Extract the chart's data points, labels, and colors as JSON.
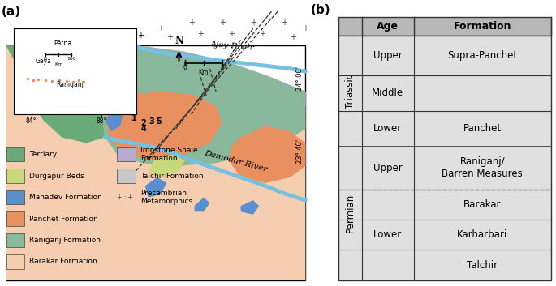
{
  "panel_b": {
    "header_age": "Age",
    "header_formation": "Formation",
    "bg_color": "#e0e0e0",
    "header_bg": "#b8b8b8",
    "line_color": "#333333",
    "font_size": 8.5
  },
  "panel_a": {
    "colors": {
      "Tertiary": "#6aaa78",
      "Durgapur Beds": "#c8d87a",
      "Mahadev Formation": "#5a8ecc",
      "Panchet Formation": "#e89060",
      "Raniganj Formation": "#8ab89c",
      "Barakar Formation": "#f5cdb0",
      "Ironstone Shale Formation": "#b8aad0",
      "Talchir Formation": "#c8c8c8",
      "river": "#78c0e0",
      "cross_marks": "#444444"
    },
    "legend_items": [
      {
        "label": "Tertiary",
        "color": "#6aaa78"
      },
      {
        "label": "Durgapur Beds",
        "color": "#c8d87a"
      },
      {
        "label": "Mahadev Formation",
        "color": "#5a8ecc"
      },
      {
        "label": "Panchet Formation",
        "color": "#e89060"
      },
      {
        "label": "Raniganj Formation",
        "color": "#8ab89c"
      },
      {
        "label": "Barakar Formation",
        "color": "#f5cdb0"
      },
      {
        "label": "Ironstone Shale\nFormation",
        "color": "#b8aad0"
      },
      {
        "label": "Talchir Formation",
        "color": "#c8c8c8"
      },
      {
        "label": "Precambrian\nMetamorphics",
        "color": null
      }
    ]
  }
}
